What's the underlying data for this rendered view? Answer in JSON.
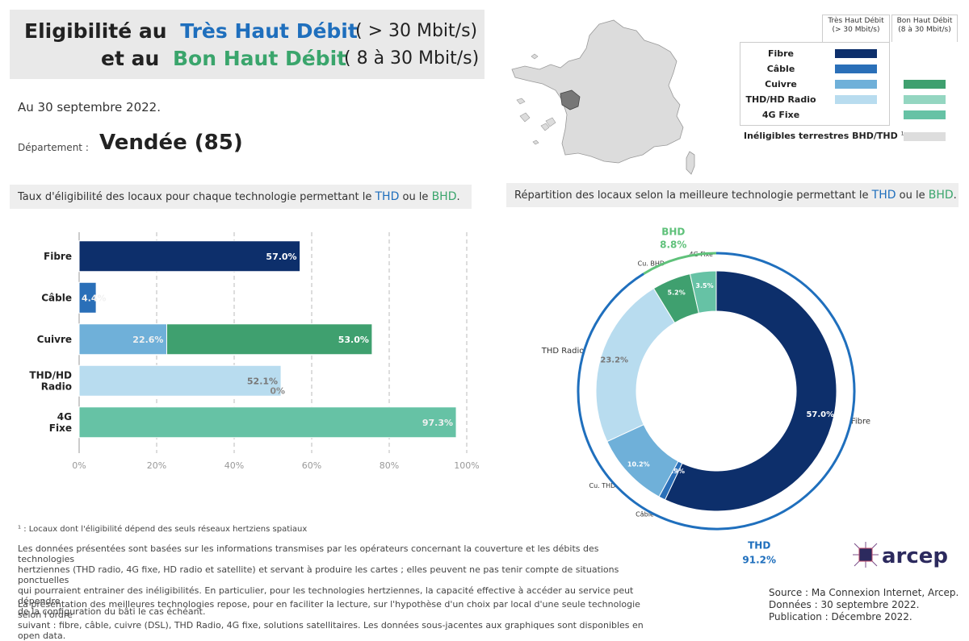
{
  "title": {
    "line1_prefix": "Eligibilité au",
    "line1_tech": "Très Haut Débit",
    "line1_speed": "( > 30 Mbit/s)",
    "line2_prefix": "et au",
    "line2_tech": "Bon Haut Débit",
    "line2_speed": "( 8 à 30 Mbit/s)"
  },
  "date_text": "Au 30 septembre 2022.",
  "department": {
    "label": "Département :",
    "name": "Vendée (85)"
  },
  "legend": {
    "col_thd_line1": "Très Haut Débit",
    "col_thd_line2": "(> 30 Mbit/s)",
    "col_bhd_line1": "Bon Haut Débit",
    "col_bhd_line2": "(8 à 30 Mbit/s)",
    "rows": [
      {
        "label": "Fibre",
        "thd_color": "#0d2f6b",
        "bhd_color": null
      },
      {
        "label": "Câble",
        "thd_color": "#2a6fb8",
        "bhd_color": null
      },
      {
        "label": "Cuivre",
        "thd_color": "#6fb0d9",
        "bhd_color": "#3fa06f"
      },
      {
        "label": "THD/HD Radio",
        "thd_color": "#b8dcef",
        "bhd_color": "#94d6c1"
      },
      {
        "label": "4G Fixe",
        "thd_color": null,
        "bhd_color": "#66c2a5"
      }
    ],
    "ineligible_label": "Inéligibles terrestres BHD/THD",
    "ineligible_sup": "1",
    "ineligible_color": "#dddddd"
  },
  "bar_section": {
    "subtitle_prefix": "Taux d'éligibilité des locaux pour chaque technologie permettant le",
    "thd": "THD",
    "or": "ou le",
    "bhd": "BHD",
    "end": "."
  },
  "donut_section": {
    "subtitle_prefix": "Répartition des locaux selon la meilleure technologie permettant le",
    "thd": "THD",
    "or": "ou le",
    "bhd": "BHD",
    "end": "."
  },
  "chart_data": [
    {
      "type": "bar",
      "orientation": "horizontal",
      "stacked": true,
      "categories": [
        "Fibre",
        "Câble",
        "Cuivre",
        "THD/HD Radio",
        "4G Fixe"
      ],
      "category_lines": [
        [
          "Fibre"
        ],
        [
          "Câble"
        ],
        [
          "Cuivre"
        ],
        [
          "THD/HD",
          "Radio"
        ],
        [
          "4G",
          "Fixe"
        ]
      ],
      "series": [
        {
          "values": [
            57.0,
            4.4,
            22.6,
            52.1,
            null
          ],
          "labels": [
            "57.0%",
            "4.4%",
            "22.6%",
            "52.1%",
            ""
          ],
          "colors": [
            "#0d2f6b",
            "#2a6fb8",
            "#6fb0d9",
            "#b8dcef",
            null
          ]
        },
        {
          "values": [
            null,
            null,
            53.0,
            0,
            97.3
          ],
          "labels": [
            "",
            "",
            "53.0%",
            "0%",
            "97.3%"
          ],
          "colors": [
            null,
            null,
            "#3fa06f",
            "#94d6c1",
            "#66c2a5"
          ]
        }
      ],
      "xlim": [
        0,
        100
      ],
      "xticks": [
        "0%",
        "20%",
        "40%",
        "60%",
        "80%",
        "100%"
      ],
      "grid": "vertical dashed"
    },
    {
      "type": "pie",
      "style": "donut",
      "slices": [
        {
          "name": "Fibre",
          "value": 57.0,
          "label": "57.0%",
          "color": "#0d2f6b",
          "group": "THD"
        },
        {
          "name": "Câble",
          "value": 0.9,
          "label": "0.9%",
          "color": "#2a6fb8",
          "group": "THD"
        },
        {
          "name": "Cu. THD",
          "value": 10.2,
          "label": "10.2%",
          "color": "#6fb0d9",
          "group": "THD"
        },
        {
          "name": "THD Radio",
          "value": 23.2,
          "label": "23.2%",
          "color": "#b8dcef",
          "group": "THD"
        },
        {
          "name": "Cu. BHD",
          "value": 5.2,
          "label": "5.2%",
          "color": "#3fa06f",
          "group": "BHD"
        },
        {
          "name": "4G Fixe",
          "value": 3.5,
          "label": "3.5%",
          "color": "#66c2a5",
          "group": "BHD"
        }
      ],
      "outer_ring": [
        {
          "name": "THD",
          "value": 91.2,
          "label": "91.2%",
          "color": "#1f6fbd"
        },
        {
          "name": "BHD",
          "value": 8.8,
          "label": "8.8%",
          "color": "#5fc17a"
        }
      ]
    }
  ],
  "footnote": "¹ : Locaux dont l'éligibilité dépend des seuls réseaux hertziens spatiaux",
  "paragraph1": [
    "Les données présentées sont basées sur les informations transmises par les opérateurs concernant la couverture et les débits des technologies",
    "hertziennes (THD radio, 4G fixe, HD radio et satellite) et servant à produire les cartes ; elles peuvent ne pas tenir compte de situations ponctuelles",
    "qui pourraient entrainer des inéligibilités. En particulier, pour les technologies hertziennes, la capacité effective à accéder au service peut dépendre",
    "de la configuration du bâti le cas échéant."
  ],
  "paragraph2": [
    "La présentation des meilleures technologies repose, pour en faciliter la lecture, sur l'hypothèse d'un choix par local d'une seule technologie selon l'ordre",
    "suivant : fibre, câble, cuivre (DSL), THD Radio, 4G fixe, solutions satellitaires. Les données sous-jacentes aux graphiques sont disponibles en open data."
  ],
  "logo_text": "arcep",
  "source": [
    "Source : Ma Connexion Internet, Arcep.",
    "Données : 30 septembre 2022.",
    "Publication : Décembre 2022."
  ]
}
